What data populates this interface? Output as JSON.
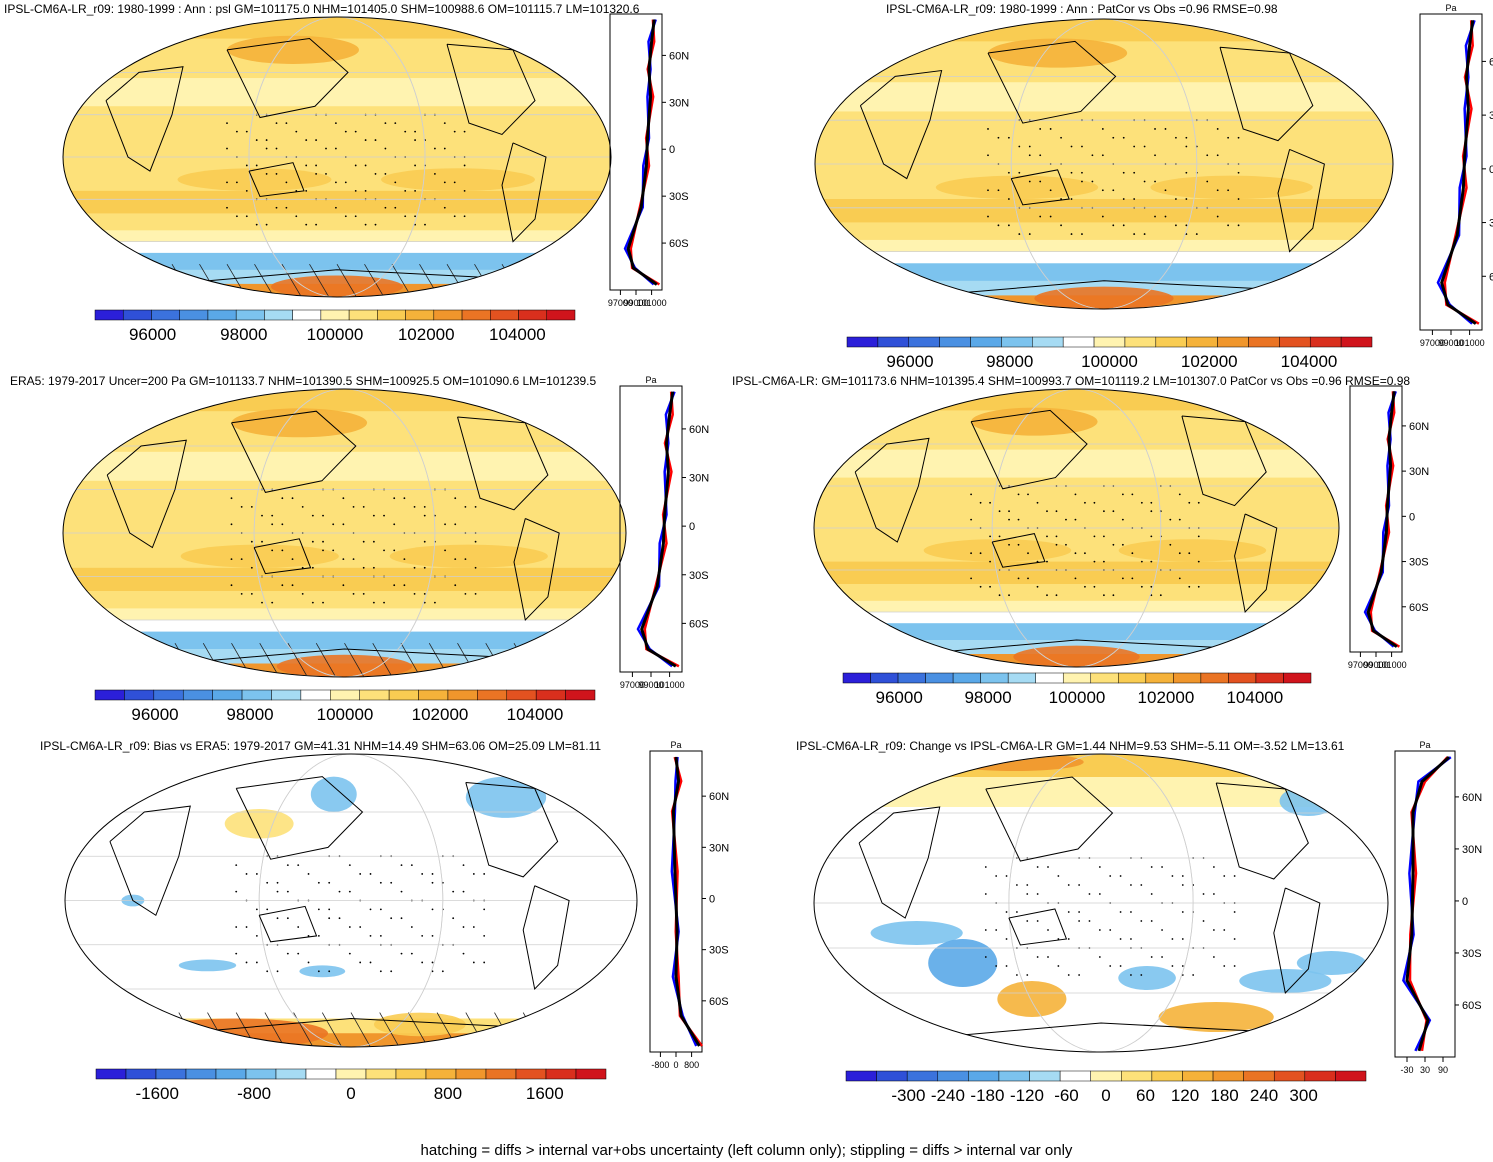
{
  "footer": "hatching = diffs > internal var+obs uncertainty (left column only); stippling = diffs > internal var only",
  "lat_labels": [
    "60N",
    "30N",
    "0",
    "30S",
    "60S"
  ],
  "panels": [
    {
      "id": "p1",
      "title": "IPSL-CM6A-LR_r09: 1980-1999 : Ann : psl GM=101175.0 NHM=101405.0 SHM=100988.6 OM=101115.7 LM=101320.6",
      "profile_top_label": "",
      "profile_ticks": [
        "97000",
        "99000",
        "101000"
      ],
      "colorbar_ticks": [
        "96000",
        "98000",
        "100000",
        "102000",
        "104000"
      ],
      "field": "abs",
      "hatching": true
    },
    {
      "id": "p2",
      "title": "IPSL-CM6A-LR_r09: 1980-1999 : Ann : PatCor vs Obs =0.96 RMSE=0.98",
      "profile_top_label": "Pa",
      "profile_ticks": [
        "97000",
        "99000",
        "101000"
      ],
      "colorbar_ticks": [
        "96000",
        "98000",
        "100000",
        "102000",
        "104000"
      ],
      "field": "abs",
      "hatching": false
    },
    {
      "id": "p3",
      "title": "ERA5: 1979-2017 Uncer=200 Pa GM=101133.7 NHM=101390.5 SHM=100925.5 OM=101090.6 LM=101239.5",
      "profile_top_label": "Pa",
      "profile_ticks": [
        "97000",
        "99000",
        "101000"
      ],
      "colorbar_ticks": [
        "96000",
        "98000",
        "100000",
        "102000",
        "104000"
      ],
      "field": "abs",
      "hatching": true
    },
    {
      "id": "p4",
      "title": "IPSL-CM6A-LR: GM=101173.6 NHM=101395.4 SHM=100993.7 OM=101119.2 LM=101307.0 PatCor vs Obs =0.96 RMSE=0.98",
      "profile_top_label": "",
      "profile_ticks": [
        "97000",
        "99000",
        "101000"
      ],
      "colorbar_ticks": [
        "96000",
        "98000",
        "100000",
        "102000",
        "104000"
      ],
      "field": "abs",
      "hatching": false
    },
    {
      "id": "p5",
      "title": "IPSL-CM6A-LR_r09: Bias vs ERA5: 1979-2017 GM=41.31 NHM=14.49 SHM=63.06 OM=25.09 LM=81.11",
      "profile_top_label": "Pa",
      "profile_ticks": [
        "-800",
        "0",
        "800"
      ],
      "colorbar_ticks": [
        "-1600",
        "-800",
        "0",
        "800",
        "1600"
      ],
      "field": "bias",
      "hatching": true
    },
    {
      "id": "p6",
      "title": "IPSL-CM6A-LR_r09: Change vs IPSL-CM6A-LR GM=1.44 NHM=9.53 SHM=-5.11 OM=-3.52 LM=13.61",
      "profile_top_label": "Pa",
      "profile_ticks": [
        "-30",
        "30",
        "90"
      ],
      "colorbar_ticks": [
        "-300",
        "-240",
        "-180",
        "-120",
        "-60",
        "0",
        "60",
        "120",
        "180",
        "240",
        "300"
      ],
      "field": "change",
      "hatching": false
    }
  ],
  "colors": {
    "palette": [
      "#2b1fd9",
      "#2f50d8",
      "#3b72dd",
      "#4a90e2",
      "#5aa8e8",
      "#7cc3ee",
      "#a6dbf3",
      "#ffffff",
      "#fff3b0",
      "#fde17a",
      "#f9cc52",
      "#f5b23a",
      "#f0962c",
      "#ea7424",
      "#e35220",
      "#d92f1d",
      "#d0141c"
    ],
    "land_outline": "#000000",
    "grid": "#cfcfcf",
    "line_model": "#ff0000",
    "line_obs": "#0000ff",
    "line_mean": "#000000"
  }
}
